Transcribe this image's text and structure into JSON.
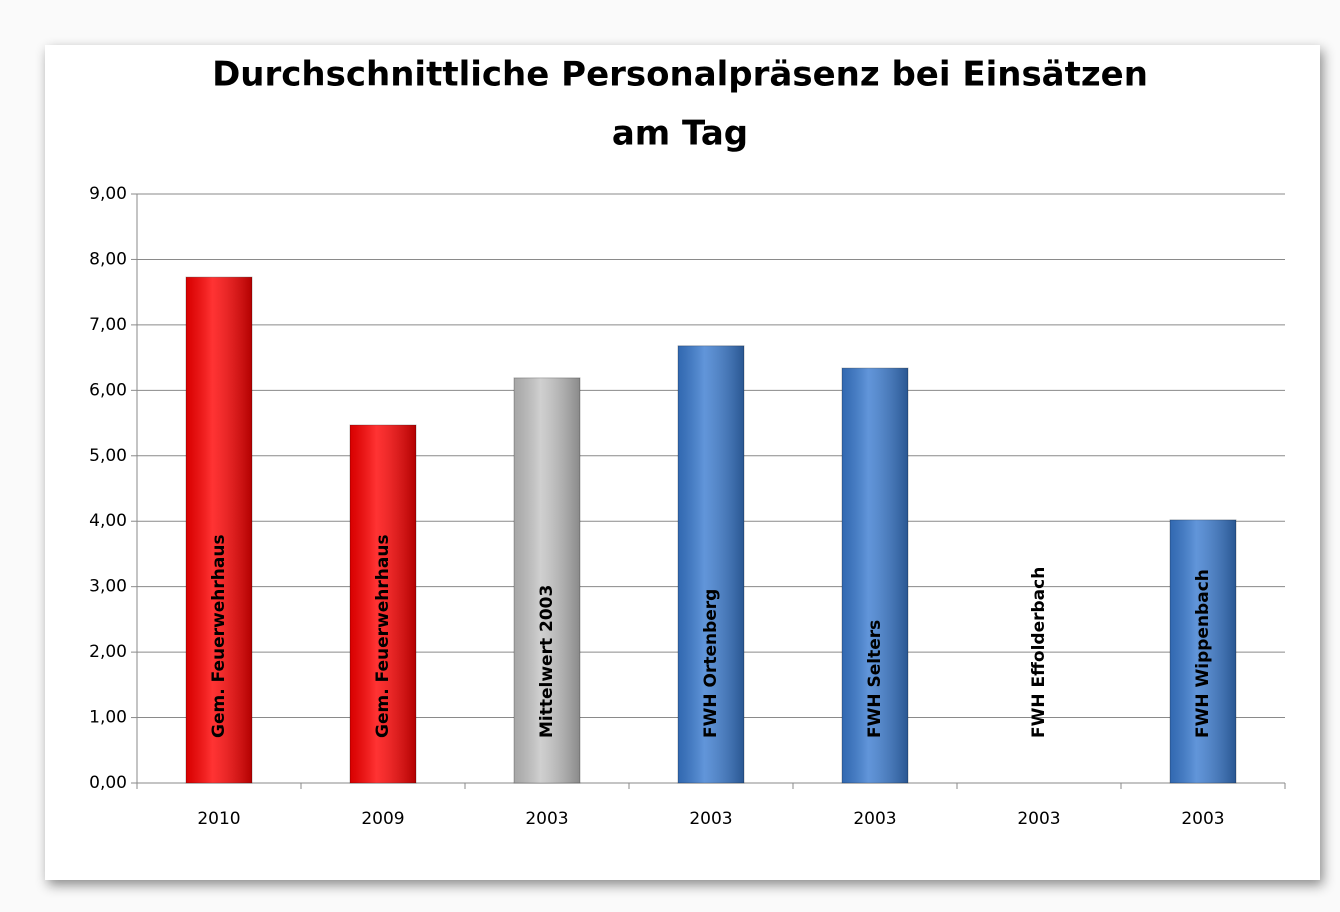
{
  "chart_data": {
    "type": "bar",
    "title": [
      "Durchschnittliche Personalpräsenz bei Einsätzen",
      "am Tag"
    ],
    "categories": [
      "2010",
      "2009",
      "2003",
      "2003",
      "2003",
      "2003",
      "2003"
    ],
    "bar_labels": [
      "Gem. Feuerwehrhaus",
      "Gem. Feuerwehrhaus",
      "Mittelwert 2003",
      "FWH Ortenberg",
      "FWH Selters",
      "FWH Effolderbach",
      "FWH Wippenbach"
    ],
    "values": [
      7.73,
      5.47,
      6.19,
      6.68,
      6.34,
      0,
      4.02
    ],
    "colors": [
      "#ff0000",
      "#ff0000",
      "#c4c4c4",
      "#3a7bd0",
      "#3a7bd0",
      "#3a7bd0",
      "#3a7bd0"
    ],
    "ylim": [
      0,
      9
    ],
    "yticks": [
      {
        "value": 0,
        "label": "0,00"
      },
      {
        "value": 1,
        "label": "1,00"
      },
      {
        "value": 2,
        "label": "2,00"
      },
      {
        "value": 3,
        "label": "3,00"
      },
      {
        "value": 4,
        "label": "4,00"
      },
      {
        "value": 5,
        "label": "5,00"
      },
      {
        "value": 6,
        "label": "6,00"
      },
      {
        "value": 7,
        "label": "7,00"
      },
      {
        "value": 8,
        "label": "8,00"
      },
      {
        "value": 9,
        "label": "9,00"
      }
    ],
    "grid": true
  }
}
